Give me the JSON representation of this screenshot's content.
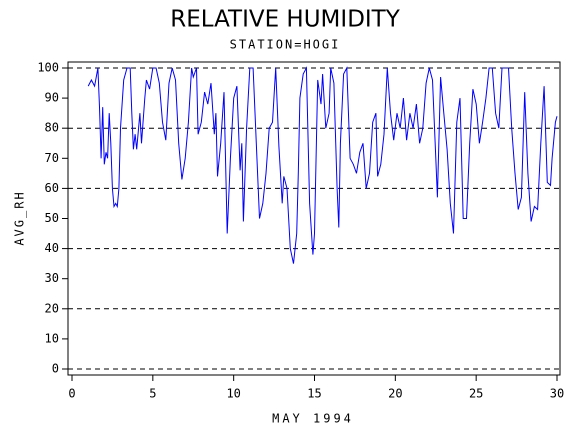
{
  "chart_data": {
    "type": "line",
    "title": "RELATIVE HUMIDITY",
    "subtitle": "STATION=HOGI",
    "x_label": "MAY 1994",
    "y_label": "AVG_RH",
    "xlim": [
      0,
      30
    ],
    "ylim": [
      0,
      100
    ],
    "xticks": [
      0,
      5,
      10,
      15,
      20,
      25,
      30
    ],
    "yticks": [
      0,
      10,
      20,
      30,
      40,
      50,
      60,
      70,
      80,
      90,
      100
    ],
    "ygrid": [
      0,
      20,
      40,
      60,
      80,
      100
    ],
    "series": [
      {
        "color": "#0000ff",
        "x": [
          1,
          1.2,
          1.4,
          1.6,
          1.7,
          1.8,
          1.9,
          2.0,
          2.1,
          2.2,
          2.3,
          2.4,
          2.5,
          2.6,
          2.7,
          2.8,
          2.9,
          3.0,
          3.2,
          3.4,
          3.6,
          3.7,
          3.8,
          3.9,
          4.0,
          4.2,
          4.3,
          4.5,
          4.6,
          4.8,
          5.0,
          5.2,
          5.4,
          5.6,
          5.8,
          6.0,
          6.2,
          6.4,
          6.6,
          6.8,
          7.0,
          7.2,
          7.4,
          7.5,
          7.7,
          7.8,
          8.0,
          8.2,
          8.4,
          8.6,
          8.8,
          8.9,
          9.0,
          9.2,
          9.4,
          9.6,
          9.8,
          10.0,
          10.2,
          10.4,
          10.5,
          10.6,
          10.8,
          11.0,
          11.2,
          11.4,
          11.6,
          11.8,
          12.0,
          12.2,
          12.4,
          12.6,
          12.8,
          13.0,
          13.1,
          13.3,
          13.5,
          13.7,
          13.9,
          14.0,
          14.1,
          14.3,
          14.5,
          14.7,
          14.9,
          15.0,
          15.2,
          15.4,
          15.5,
          15.7,
          15.9,
          16.0,
          16.2,
          16.4,
          16.5,
          16.6,
          16.8,
          17.0,
          17.2,
          17.4,
          17.6,
          17.8,
          18.0,
          18.2,
          18.4,
          18.6,
          18.8,
          18.9,
          19.1,
          19.3,
          19.5,
          19.7,
          19.9,
          20.1,
          20.3,
          20.5,
          20.7,
          20.9,
          21.1,
          21.3,
          21.5,
          21.7,
          21.9,
          22.1,
          22.3,
          22.5,
          22.6,
          22.8,
          23.0,
          23.2,
          23.4,
          23.6,
          23.8,
          24.0,
          24.2,
          24.4,
          24.6,
          24.8,
          25.0,
          25.2,
          25.4,
          25.6,
          25.8,
          26.0,
          26.2,
          26.4,
          26.6,
          26.8,
          27.0,
          27.2,
          27.4,
          27.6,
          27.8,
          28.0,
          28.2,
          28.4,
          28.6,
          28.8,
          29.0,
          29.2,
          29.4,
          29.6,
          29.7,
          29.9,
          30.0
        ],
        "values": [
          94,
          96,
          94,
          100,
          87,
          70,
          87,
          68,
          72,
          70,
          85,
          75,
          60,
          54,
          55,
          54,
          60,
          80,
          96,
          100,
          100,
          85,
          73,
          78,
          73,
          85,
          75,
          90,
          96,
          93,
          100,
          100,
          95,
          82,
          76,
          95,
          100,
          96,
          75,
          63,
          70,
          82,
          100,
          97,
          100,
          78,
          82,
          92,
          88,
          95,
          78,
          85,
          64,
          75,
          92,
          45,
          70,
          90,
          94,
          66,
          75,
          49,
          80,
          100,
          100,
          75,
          50,
          55,
          65,
          80,
          82,
          100,
          74,
          55,
          64,
          60,
          40,
          35,
          45,
          65,
          90,
          98,
          100,
          55,
          38,
          45,
          96,
          88,
          98,
          80,
          85,
          100,
          95,
          60,
          47,
          75,
          98,
          100,
          70,
          68,
          65,
          72,
          75,
          60,
          65,
          82,
          85,
          64,
          68,
          78,
          100,
          85,
          76,
          85,
          80,
          90,
          76,
          85,
          80,
          88,
          75,
          80,
          95,
          100,
          96,
          70,
          57,
          97,
          85,
          73,
          55,
          45,
          82,
          90,
          50,
          50,
          75,
          93,
          88,
          75,
          82,
          90,
          100,
          100,
          85,
          80,
          100,
          100,
          100,
          80,
          65,
          53,
          57,
          92,
          65,
          49,
          54,
          53,
          75,
          94,
          62,
          61,
          70,
          82,
          84
        ]
      }
    ]
  }
}
